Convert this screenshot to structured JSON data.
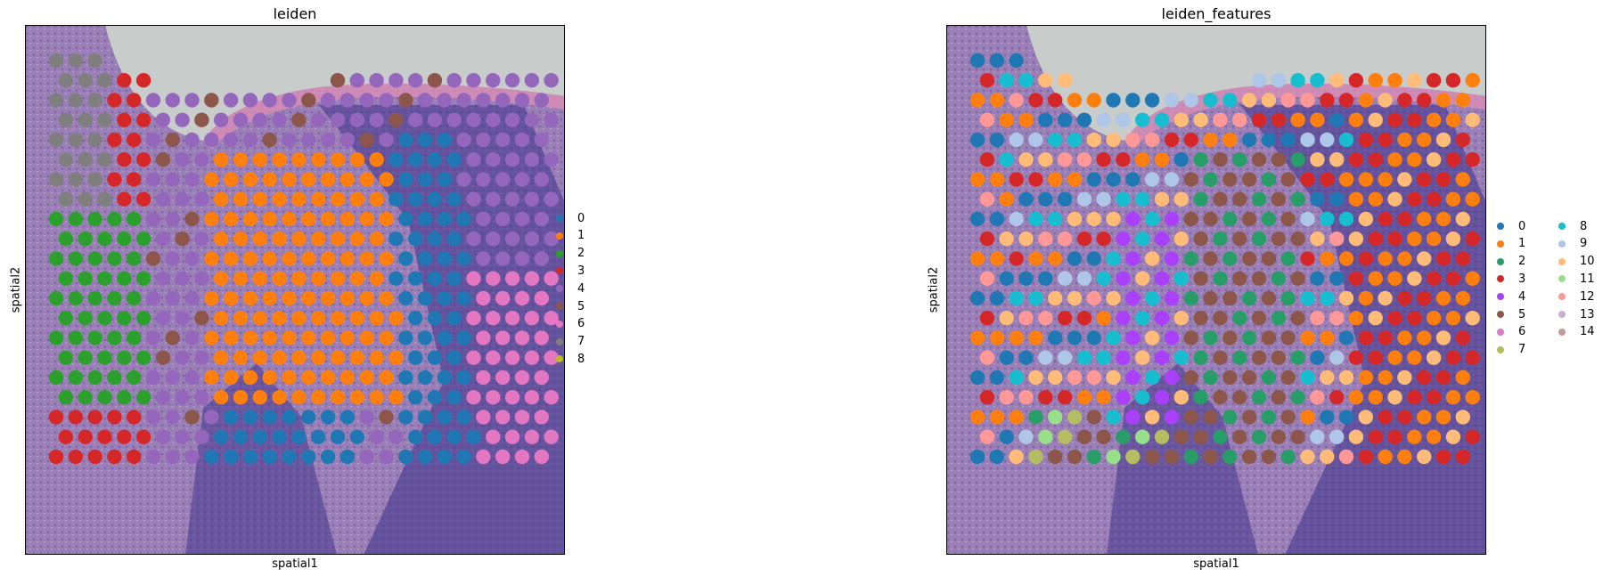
{
  "chart_data": [
    {
      "type": "scatter",
      "title": "leiden",
      "xlabel": "spatial1",
      "ylabel": "spatial2",
      "grid": false,
      "background": "tissue histology image (H&E)",
      "legend_position": "right",
      "legend": [
        {
          "label": "0",
          "color": "#1f77b4"
        },
        {
          "label": "1",
          "color": "#ff7f0e"
        },
        {
          "label": "2",
          "color": "#2ca02c"
        },
        {
          "label": "3",
          "color": "#d62728"
        },
        {
          "label": "4",
          "color": "#9467bd"
        },
        {
          "label": "5",
          "color": "#8c564b"
        },
        {
          "label": "6",
          "color": "#e377c2"
        },
        {
          "label": "7",
          "color": "#7f7f7f"
        },
        {
          "label": "8",
          "color": "#bcbd22"
        }
      ]
    },
    {
      "type": "scatter",
      "title": "leiden_features",
      "xlabel": "spatial1",
      "ylabel": "spatial2",
      "grid": false,
      "background": "tissue histology image (H&E)",
      "legend_position": "right",
      "legend": [
        {
          "label": "0",
          "color": "#1f77b4"
        },
        {
          "label": "1",
          "color": "#ff7f0e"
        },
        {
          "label": "2",
          "color": "#279e68"
        },
        {
          "label": "3",
          "color": "#d62728"
        },
        {
          "label": "4",
          "color": "#aa40fc"
        },
        {
          "label": "5",
          "color": "#8c564b"
        },
        {
          "label": "6",
          "color": "#e377c2"
        },
        {
          "label": "7",
          "color": "#b5bd61"
        },
        {
          "label": "8",
          "color": "#17becf"
        },
        {
          "label": "9",
          "color": "#aec7e8"
        },
        {
          "label": "10",
          "color": "#ffbb78"
        },
        {
          "label": "11",
          "color": "#98df8a"
        },
        {
          "label": "12",
          "color": "#ff9896"
        },
        {
          "label": "13",
          "color": "#c5b0d5"
        },
        {
          "label": "14",
          "color": "#c49c94"
        }
      ]
    }
  ]
}
